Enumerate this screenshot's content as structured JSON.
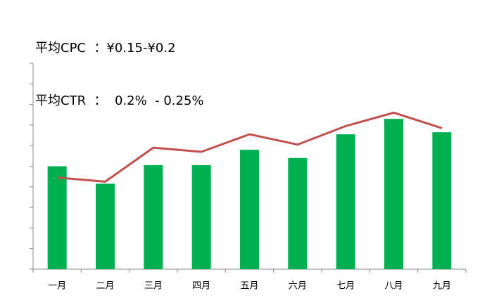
{
  "header": {
    "lines": [
      "平均CPC  ：¥0.15-¥0.2",
      "平均CTR  ：  0.2%  - 0.25%"
    ]
  },
  "chart_data": {
    "type": "bar_line",
    "categories": [
      "一月",
      "二月",
      "三月",
      "四月",
      "五月",
      "六月",
      "七月",
      "八月",
      "九月"
    ],
    "series": [
      {
        "type": "bar",
        "color": "#00b050",
        "values": [
          5.0,
          4.15,
          5.05,
          5.05,
          5.8,
          5.4,
          6.55,
          7.3,
          6.65
        ]
      },
      {
        "type": "line",
        "color": "#c0504d",
        "values": [
          4.45,
          4.25,
          5.9,
          5.7,
          6.55,
          6.05,
          6.95,
          7.6,
          6.85
        ]
      }
    ],
    "ylim": [
      0,
      10
    ],
    "yticks": [
      0,
      1,
      2,
      3,
      4,
      5,
      6,
      7,
      8,
      9,
      10
    ]
  }
}
